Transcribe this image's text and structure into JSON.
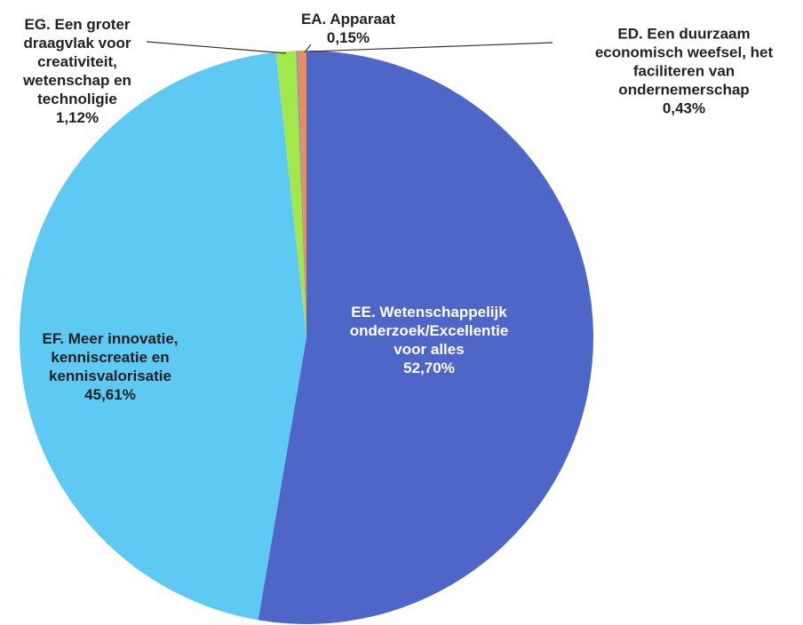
{
  "chart_data": {
    "type": "pie",
    "categories": [
      "EE. Wetenschappelijk\nonderzoek/Excellentie\nvoor alles",
      "EF. Meer innovatie,\nkenniscreatie en\nkennisvalorisatie",
      "EG. Een groter\ndraagvlak voor\ncreativiteit,\nwetenschap en\ntechnoligie",
      "EA. Apparaat",
      "ED. Een duurzaam\neconomisch weefsel, het\nfaciliteren van\nondernemerschap"
    ],
    "values": [
      52.7,
      45.61,
      1.12,
      0.15,
      0.43
    ],
    "value_labels": [
      "52,70%",
      "45,61%",
      "1,12%",
      "0,15%",
      "0,43%"
    ],
    "colors": [
      "#4f66c9",
      "#5ec9f2",
      "#a3e84b",
      "#9a9a9a",
      "#f08a5a"
    ]
  }
}
